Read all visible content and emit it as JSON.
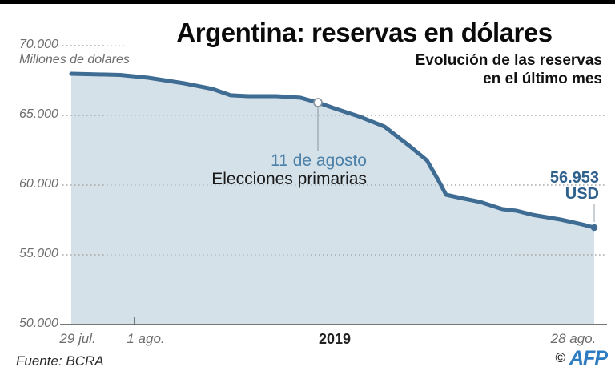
{
  "header": {
    "title": "Argentina: reservas en dólares",
    "subtitle_line1": "Evolución de las reservas",
    "subtitle_line2": "en el último mes"
  },
  "chart_data": {
    "type": "area",
    "title": "Argentina: reservas en dólares",
    "unit_label": "Millones de dolares",
    "ylim": [
      50000,
      70000
    ],
    "y_tick_labels": [
      "70.000",
      "65.000",
      "60.000",
      "55.000",
      "50.000"
    ],
    "y_tick_values": [
      70000,
      65000,
      60000,
      55000,
      50000
    ],
    "x_tick_labels": [
      "29 jul.",
      "1 ago.",
      "2019",
      "28 ago."
    ],
    "grid": "dotted-horizontal",
    "legend": "none",
    "points": [
      [
        89,
        67990
      ],
      [
        150,
        67900
      ],
      [
        185,
        67700
      ],
      [
        230,
        67300
      ],
      [
        265,
        66900
      ],
      [
        288,
        66440
      ],
      [
        310,
        66380
      ],
      [
        345,
        66380
      ],
      [
        375,
        66270
      ],
      [
        397,
        65920
      ],
      [
        420,
        65460
      ],
      [
        450,
        64890
      ],
      [
        480,
        64200
      ],
      [
        510,
        62870
      ],
      [
        533,
        61780
      ],
      [
        548,
        60290
      ],
      [
        557,
        59310
      ],
      [
        575,
        59080
      ],
      [
        600,
        58790
      ],
      [
        627,
        58280
      ],
      [
        645,
        58160
      ],
      [
        665,
        57870
      ],
      [
        700,
        57530
      ],
      [
        727,
        57180
      ],
      [
        742,
        56953
      ]
    ],
    "marker": {
      "x": 397,
      "value": 65920,
      "label": "11 de agosto",
      "sublabel": "Elecciones primarias"
    },
    "end_label": {
      "value": "56.953",
      "unit": "USD"
    }
  },
  "colors": {
    "line": "#3e6c93",
    "area": "#d4e1e9",
    "grid": "#a8a8a8",
    "axis": "#4a4a4a",
    "annotation_blue": "#4d81a8",
    "value_blue": "#2f618c",
    "afp_blue": "#2d7cc1"
  },
  "footer": {
    "source": "Fuente: BCRA",
    "copyright": "©",
    "agency": "AFP"
  }
}
